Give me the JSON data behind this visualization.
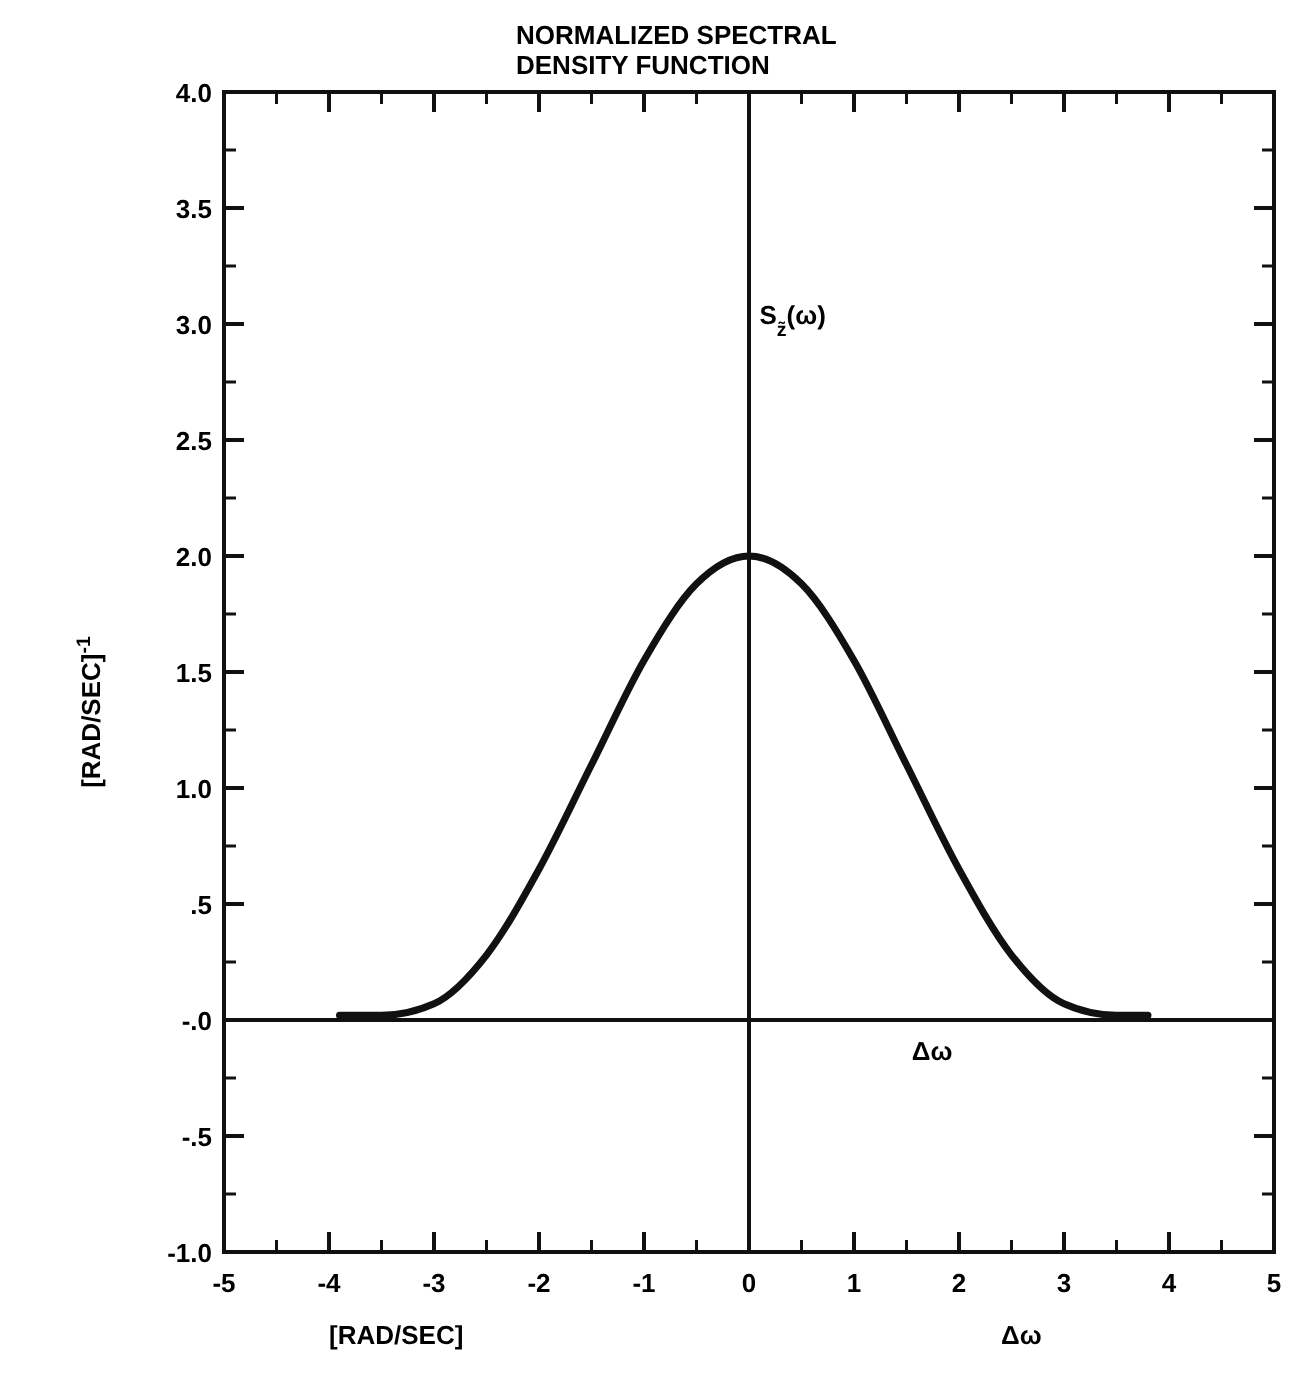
{
  "chart_data": {
    "type": "line",
    "title": "NORMALIZED SPECTRAL\nDENSITY FUNCTION",
    "xlabel": "[RAD/SEC]",
    "ylabel": "[RAD/SEC]$^{-1}$",
    "x": [
      -3.9,
      -3.5,
      -3.0,
      -2.5,
      -2.0,
      -1.5,
      -1.0,
      -0.5,
      0,
      0.5,
      1.0,
      1.5,
      2.0,
      2.5,
      3.0,
      3.5,
      3.8
    ],
    "series": [
      {
        "color": "#111111",
        "values": [
          0.02,
          0.02,
          0.07,
          0.28,
          0.65,
          1.1,
          1.55,
          1.88,
          2.0,
          1.88,
          1.55,
          1.1,
          0.65,
          0.28,
          0.07,
          0.02,
          0.02
        ]
      }
    ],
    "annotations": [
      "S$_{z̃}$(ω)",
      "Δω"
    ],
    "ref_lines": [
      {
        "axis": "x",
        "value": 0
      },
      {
        "axis": "y",
        "value": 0,
        "label": "Δω"
      }
    ],
    "xlim": [
      -5,
      5
    ],
    "ylim": [
      -1,
      4
    ],
    "xticks": [
      -5,
      -4,
      -3,
      -2,
      -1,
      0,
      1,
      2,
      3,
      4,
      5
    ],
    "yticks": [
      {
        "value": 4,
        "label": "4.0"
      },
      {
        "value": 3.5,
        "label": "3.5"
      },
      {
        "value": 3,
        "label": "3.0"
      },
      {
        "value": 2.5,
        "label": "2.5"
      },
      {
        "value": 2,
        "label": "2.0"
      },
      {
        "value": 1.5,
        "label": "1.5"
      },
      {
        "value": 1,
        "label": "1.0"
      },
      {
        "value": 0.5,
        "label": ".5"
      },
      {
        "value": 0,
        "label": "-.0"
      },
      {
        "value": -0.5,
        "label": "-.5"
      },
      {
        "value": -1,
        "label": "-1.0"
      }
    ],
    "grid": false,
    "marker": "none",
    "line_style": "solid"
  }
}
